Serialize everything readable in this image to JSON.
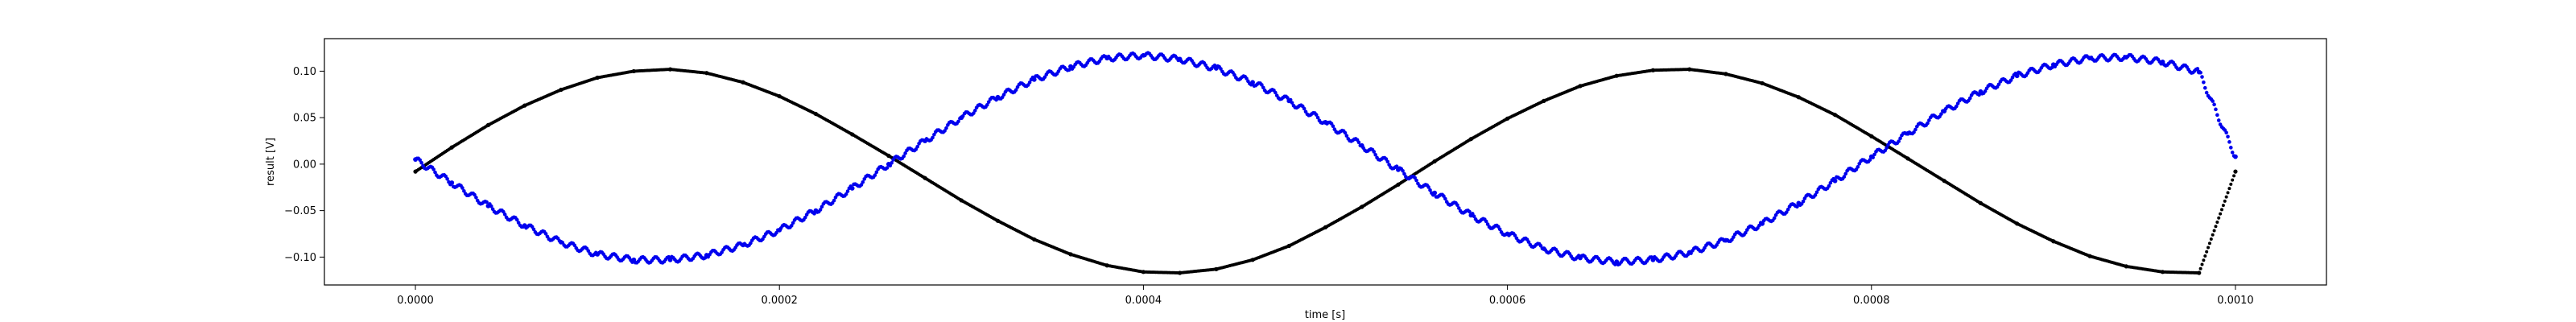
{
  "chart_data": {
    "type": "scatter",
    "xlabel": "time [s]",
    "ylabel": "result [V]",
    "xlim": [
      -5e-05,
      0.00105
    ],
    "ylim": [
      -0.13,
      0.135
    ],
    "grid": false,
    "x_ticks": [
      0.0,
      0.0002,
      0.0004,
      0.0006,
      0.0008,
      0.001
    ],
    "x_tick_labels": [
      "0.0000",
      "0.0002",
      "0.0004",
      "0.0006",
      "0.0008",
      "0.0010"
    ],
    "y_ticks": [
      -0.1,
      -0.05,
      0.0,
      0.05,
      0.1
    ],
    "y_tick_labels": [
      "−0.10",
      "−0.05",
      "0.00",
      "0.05",
      "0.10"
    ],
    "series": [
      {
        "color": "#000000",
        "marker_size": 2,
        "x": [
          0.0,
          2e-05,
          4e-05,
          6e-05,
          8e-05,
          0.0001,
          0.00012,
          0.00014,
          0.00016,
          0.00018,
          0.0002,
          0.00022,
          0.00024,
          0.00026,
          0.00028,
          0.0003,
          0.00032,
          0.00034,
          0.00036,
          0.00038,
          0.0004,
          0.00042,
          0.00044,
          0.00046,
          0.00048,
          0.0005,
          0.00052,
          0.00054,
          0.00056,
          0.00058,
          0.0006,
          0.00062,
          0.00064,
          0.00066,
          0.00068,
          0.0007,
          0.00072,
          0.00074,
          0.00076,
          0.00078,
          0.0008,
          0.00082,
          0.00084,
          0.00086,
          0.00088,
          0.0009,
          0.00092,
          0.00094,
          0.00096,
          0.00098,
          0.001
        ],
        "y": [
          -0.008,
          0.018,
          0.042,
          0.063,
          0.08,
          0.093,
          0.1,
          0.102,
          0.098,
          0.088,
          0.073,
          0.054,
          0.032,
          0.009,
          -0.015,
          -0.039,
          -0.061,
          -0.081,
          -0.097,
          -0.109,
          -0.116,
          -0.117,
          -0.113,
          -0.103,
          -0.088,
          -0.068,
          -0.046,
          -0.022,
          0.003,
          0.027,
          0.049,
          0.068,
          0.084,
          0.095,
          0.101,
          0.102,
          0.097,
          0.087,
          0.072,
          0.053,
          0.03,
          0.006,
          -0.018,
          -0.042,
          -0.064,
          -0.083,
          -0.099,
          -0.11,
          -0.116,
          -0.117,
          -0.008
        ]
      },
      {
        "color": "#0000ee",
        "marker_size": 2.3,
        "x": [
          0.0,
          2e-05,
          4e-05,
          6e-05,
          8e-05,
          0.0001,
          0.00012,
          0.00014,
          0.00016,
          0.00018,
          0.0002,
          0.00022,
          0.00024,
          0.00026,
          0.00028,
          0.0003,
          0.00032,
          0.00034,
          0.00036,
          0.00038,
          0.0004,
          0.00042,
          0.00044,
          0.00046,
          0.00048,
          0.0005,
          0.00052,
          0.00054,
          0.00056,
          0.00058,
          0.0006,
          0.00062,
          0.00064,
          0.00066,
          0.00068,
          0.0007,
          0.00072,
          0.00074,
          0.00076,
          0.00078,
          0.0008,
          0.00082,
          0.00084,
          0.00086,
          0.00088,
          0.0009,
          0.00092,
          0.00094,
          0.00096,
          0.00098,
          0.001
        ],
        "y": [
          0.005,
          -0.02,
          -0.045,
          -0.066,
          -0.084,
          -0.097,
          -0.103,
          -0.103,
          -0.098,
          -0.087,
          -0.071,
          -0.05,
          -0.026,
          0.0,
          0.025,
          0.05,
          0.072,
          0.091,
          0.105,
          0.114,
          0.117,
          0.113,
          0.103,
          0.088,
          0.068,
          0.045,
          0.02,
          -0.006,
          -0.031,
          -0.055,
          -0.075,
          -0.091,
          -0.101,
          -0.105,
          -0.103,
          -0.095,
          -0.082,
          -0.064,
          -0.042,
          -0.018,
          0.008,
          0.033,
          0.057,
          0.078,
          0.095,
          0.107,
          0.114,
          0.115,
          0.11,
          0.099,
          0.008
        ]
      }
    ]
  }
}
